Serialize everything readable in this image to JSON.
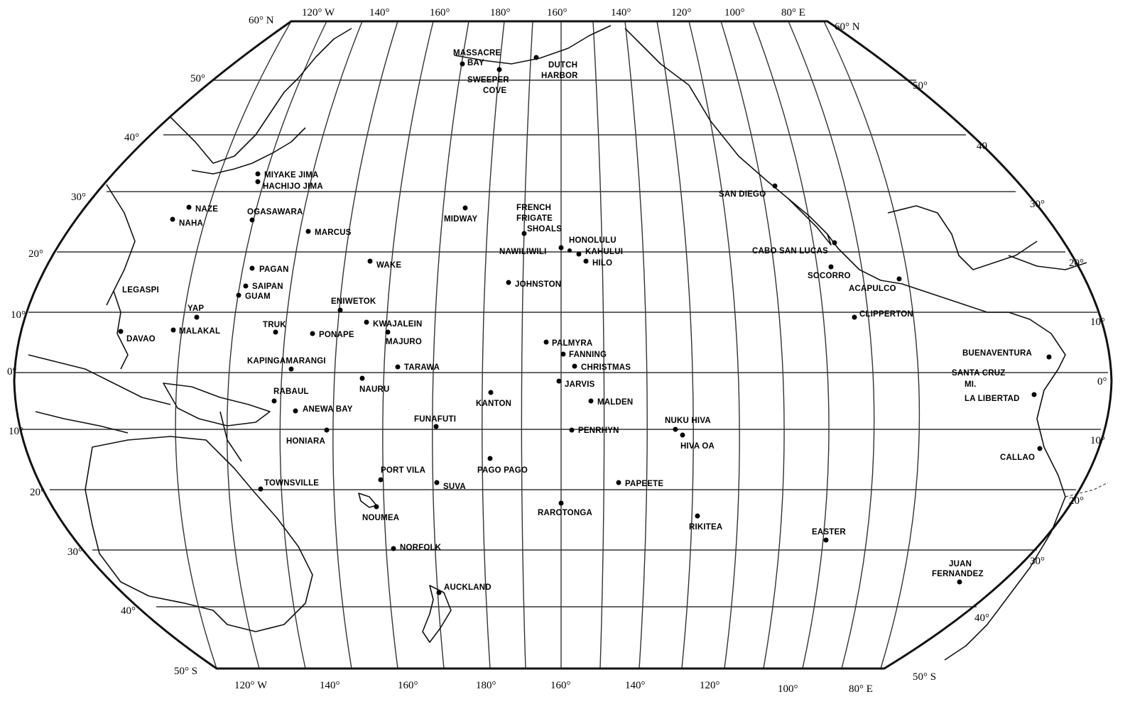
{
  "axis_labels": {
    "top": [
      "120° W",
      "140°",
      "160°",
      "180°",
      "160°",
      "140°",
      "120°",
      "100°",
      "80° E"
    ],
    "bottom": [
      "120° W",
      "140°",
      "160°",
      "180°",
      "160°",
      "140°",
      "120°",
      "100°",
      "80° E"
    ],
    "corner_top_left": "60° N",
    "corner_top_right": "60° N",
    "corner_bottom_left": "50° S",
    "corner_bottom_right": "50° S",
    "left": [
      "50°",
      "40°",
      "30°",
      "20°",
      "10°",
      "0°",
      "10°",
      "20°",
      "30°",
      "40°"
    ],
    "right": [
      "50°",
      "40",
      "30°",
      "20°",
      "10°",
      "0°",
      "10°",
      "20°",
      "30°",
      "40°"
    ]
  },
  "places": [
    {
      "name": "MASSACRE",
      "name2": "BAY"
    },
    {
      "name": "SWEEPER",
      "name2": "COVE"
    },
    {
      "name": "DUTCH",
      "name2": "HARBOR"
    },
    {
      "name": "MIYAKE JIMA"
    },
    {
      "name": "HACHIJO JIMA"
    },
    {
      "name": "NAZE"
    },
    {
      "name": "NAHA"
    },
    {
      "name": "OGASAWARA"
    },
    {
      "name": "MARCUS"
    },
    {
      "name": "MIDWAY"
    },
    {
      "name": "FRENCH",
      "name2": "FRIGATE",
      "name3": "SHOALS"
    },
    {
      "name": "HONOLULU"
    },
    {
      "name": "NAWILIWILI"
    },
    {
      "name": "KAHULUI"
    },
    {
      "name": "HILO"
    },
    {
      "name": "SAN DIEGO"
    },
    {
      "name": "CABO SAN LUCAS"
    },
    {
      "name": "SOCORRO"
    },
    {
      "name": "ACAPULCO"
    },
    {
      "name": "CLIPPERTON"
    },
    {
      "name": "PAGAN"
    },
    {
      "name": "SAIPAN"
    },
    {
      "name": "GUAM"
    },
    {
      "name": "WAKE"
    },
    {
      "name": "JOHNSTON"
    },
    {
      "name": "LEGASPI"
    },
    {
      "name": "YAP"
    },
    {
      "name": "MALAKAL"
    },
    {
      "name": "DAVAO"
    },
    {
      "name": "TRUK"
    },
    {
      "name": "PONAPE"
    },
    {
      "name": "ENIWETOK"
    },
    {
      "name": "KWAJALEIN"
    },
    {
      "name": "MAJURO"
    },
    {
      "name": "PALMYRA"
    },
    {
      "name": "FANNING"
    },
    {
      "name": "CHRISTMAS"
    },
    {
      "name": "JARVIS"
    },
    {
      "name": "BUENAVENTURA"
    },
    {
      "name": "SANTA CRUZ"
    },
    {
      "name": "MI."
    },
    {
      "name": "LA LIBERTAD"
    },
    {
      "name": "KAPINGAMARANGI"
    },
    {
      "name": "TARAWA"
    },
    {
      "name": "NAURU"
    },
    {
      "name": "RABAUL"
    },
    {
      "name": "ANEWA BAY"
    },
    {
      "name": "KANTON"
    },
    {
      "name": "MALDEN"
    },
    {
      "name": "FUNAFUTI"
    },
    {
      "name": "NUKU HIVA"
    },
    {
      "name": "PENRHYN"
    },
    {
      "name": "HIVA OA"
    },
    {
      "name": "HONIARA"
    },
    {
      "name": "CALLAO"
    },
    {
      "name": "PORT VILA"
    },
    {
      "name": "PAGO PAGO"
    },
    {
      "name": "SUVA"
    },
    {
      "name": "TOWNSVILLE"
    },
    {
      "name": "PAPEETE"
    },
    {
      "name": "RAROTONGA"
    },
    {
      "name": "NOUMEA"
    },
    {
      "name": "RIKITEA"
    },
    {
      "name": "EASTER"
    },
    {
      "name": "NORFOLK"
    },
    {
      "name": "JUAN",
      "name2": "FERNANDEZ"
    },
    {
      "name": "AUCKLAND"
    }
  ]
}
